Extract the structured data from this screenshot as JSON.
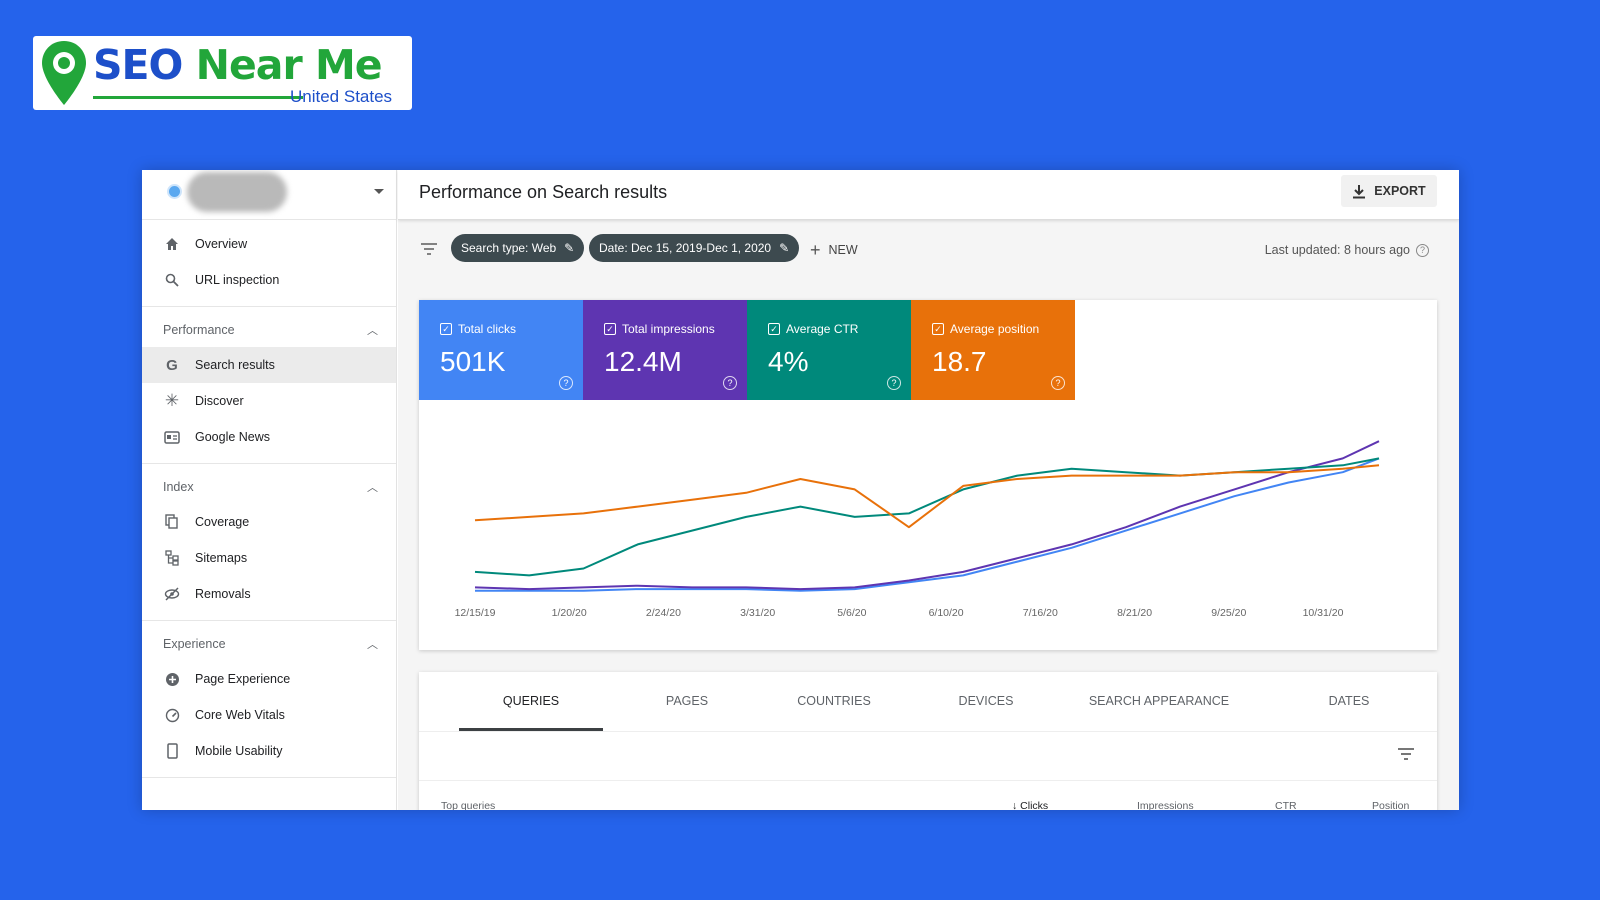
{
  "logo": {
    "word1": "SEO",
    "word2": "Near Me",
    "subtitle": "United States",
    "colors": {
      "blue": "#1d4fc9",
      "green": "#22a63a"
    }
  },
  "sidebar": {
    "top_items": [
      {
        "icon": "home-icon",
        "label": "Overview"
      },
      {
        "icon": "search-icon",
        "label": "URL inspection"
      }
    ],
    "sections": [
      {
        "title": "Performance",
        "items": [
          {
            "icon": "google-g-icon",
            "label": "Search results",
            "active": true
          },
          {
            "icon": "asterisk-icon",
            "label": "Discover"
          },
          {
            "icon": "news-icon",
            "label": "Google News"
          }
        ]
      },
      {
        "title": "Index",
        "items": [
          {
            "icon": "coverage-icon",
            "label": "Coverage"
          },
          {
            "icon": "sitemap-icon",
            "label": "Sitemaps"
          },
          {
            "icon": "removals-icon",
            "label": "Removals"
          }
        ]
      },
      {
        "title": "Experience",
        "items": [
          {
            "icon": "plus-circle-icon",
            "label": "Page Experience"
          },
          {
            "icon": "gauge-icon",
            "label": "Core Web Vitals"
          },
          {
            "icon": "phone-icon",
            "label": "Mobile Usability"
          }
        ]
      }
    ]
  },
  "header": {
    "title": "Performance on Search results",
    "export_label": "EXPORT"
  },
  "filters": {
    "search_type": "Search type: Web",
    "date": "Date: Dec 15, 2019-Dec 1, 2020",
    "new_label": "NEW",
    "last_updated": "Last updated: 8 hours ago"
  },
  "metrics": {
    "clicks": {
      "label": "Total clicks",
      "value": "501K",
      "color": "#4285f4"
    },
    "impressions": {
      "label": "Total impressions",
      "value": "12.4M",
      "color": "#5e35b1"
    },
    "ctr": {
      "label": "Average CTR",
      "value": "4%",
      "color": "#00897b"
    },
    "position": {
      "label": "Average position",
      "value": "18.7",
      "color": "#e8710a"
    }
  },
  "chart_data": {
    "type": "line",
    "title": "",
    "xlabel": "",
    "ylabel": "",
    "x_ticks": [
      "12/15/19",
      "1/20/20",
      "2/24/20",
      "3/31/20",
      "5/6/20",
      "6/10/20",
      "7/16/20",
      "8/21/20",
      "9/25/20",
      "10/31/20"
    ],
    "x_range": [
      0,
      100
    ],
    "y_range": [
      0,
      100
    ],
    "x": [
      0,
      6,
      12,
      18,
      24,
      30,
      36,
      42,
      48,
      54,
      60,
      66,
      72,
      78,
      84,
      90,
      96,
      100
    ],
    "series": [
      {
        "color": "#4285f4",
        "values": [
          3,
          3,
          3,
          4,
          4,
          4,
          3,
          4,
          8,
          12,
          20,
          28,
          38,
          48,
          58,
          66,
          72,
          80
        ]
      },
      {
        "color": "#5e35b1",
        "values": [
          5,
          4,
          5,
          6,
          5,
          5,
          4,
          5,
          9,
          14,
          22,
          30,
          40,
          52,
          62,
          72,
          80,
          90
        ]
      },
      {
        "color": "#00897b",
        "values": [
          14,
          12,
          16,
          30,
          38,
          46,
          52,
          46,
          48,
          62,
          70,
          74,
          72,
          70,
          72,
          74,
          76,
          80
        ]
      },
      {
        "color": "#e8710a",
        "values": [
          44,
          46,
          48,
          52,
          56,
          60,
          68,
          62,
          40,
          64,
          68,
          70,
          70,
          70,
          72,
          72,
          74,
          76
        ]
      }
    ]
  },
  "table_tabs": [
    "QUERIES",
    "PAGES",
    "COUNTRIES",
    "DEVICES",
    "SEARCH APPEARANCE",
    "DATES"
  ],
  "table_columns": {
    "query": "Top queries",
    "clicks": "Clicks",
    "impressions": "Impressions",
    "ctr": "CTR",
    "position": "Position"
  }
}
